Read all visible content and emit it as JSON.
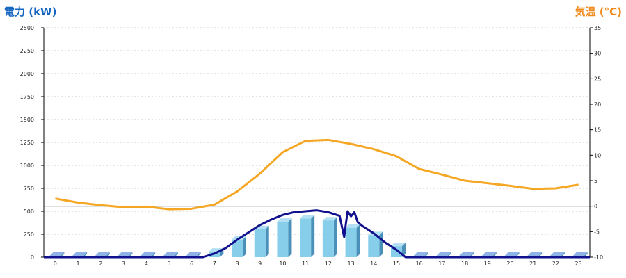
{
  "chart_data": {
    "type": "bar",
    "left_axis_title": "電力 (kW)",
    "right_axis_title": "気温 (°C)",
    "categories": [
      "0",
      "1",
      "2",
      "3",
      "4",
      "5",
      "6",
      "7",
      "8",
      "9",
      "10",
      "11",
      "12",
      "13",
      "14",
      "15",
      "16",
      "17",
      "18",
      "19",
      "20",
      "21",
      "22",
      "23"
    ],
    "left_ticks": [
      "0",
      "250",
      "500",
      "750",
      "1000",
      "1250",
      "1500",
      "1750",
      "2000",
      "2250",
      "2500"
    ],
    "right_ticks": [
      "-10",
      "-5",
      "0",
      "5",
      "10",
      "15",
      "20",
      "25",
      "30",
      "35"
    ],
    "ylim_left": [
      0,
      2500
    ],
    "ylim_right": [
      -10,
      35
    ],
    "grid": true,
    "series": [
      {
        "kind": "bar",
        "axis": "left",
        "values": [
          15,
          15,
          15,
          15,
          15,
          15,
          15,
          60,
          190,
          305,
          385,
          420,
          400,
          320,
          240,
          120,
          15,
          15,
          15,
          15,
          15,
          15,
          15,
          15
        ]
      },
      {
        "kind": "line",
        "axis": "left",
        "x": [
          6.5,
          7,
          7.5,
          8,
          8.5,
          9,
          9.5,
          10,
          10.5,
          11,
          11.5,
          12,
          12.5,
          12.7,
          12.85,
          13,
          13.15,
          13.3,
          13.5,
          14,
          14.5,
          15,
          15.4
        ],
        "values": [
          0,
          40,
          100,
          190,
          270,
          350,
          410,
          460,
          490,
          500,
          510,
          490,
          450,
          220,
          500,
          445,
          490,
          380,
          340,
          260,
          160,
          80,
          0
        ]
      },
      {
        "kind": "line",
        "axis": "right",
        "values": [
          1.5,
          0.7,
          0.2,
          -0.2,
          -0.1,
          -0.6,
          -0.5,
          0.3,
          2.9,
          6.4,
          10.6,
          12.8,
          13.0,
          12.2,
          11.2,
          9.8,
          7.3,
          6.2,
          5.0,
          4.5,
          4.0,
          3.4,
          3.5,
          4.2
        ]
      }
    ],
    "colors": {
      "bar": "#87ceeb",
      "bar_side": "#4a90b8",
      "bar_top": "#b3e0f2",
      "baseline_bar": "#5b8fd6",
      "power_line": "#11118e",
      "temp_line": "#f5a623",
      "zero_line": "#000000",
      "grid": "#c8c8c8",
      "left_title": "#1565c0",
      "right_title": "#f08a1c"
    }
  }
}
